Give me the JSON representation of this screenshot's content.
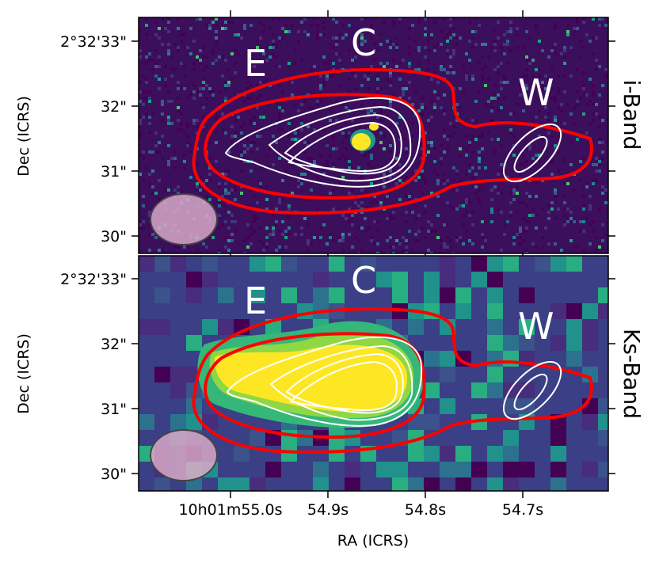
{
  "panels": [
    {
      "band_label": "i-Band",
      "region_labels": [
        "E",
        "C",
        "W"
      ],
      "y_ticks": [
        "2°32'33\"",
        "32\"",
        "31\"",
        "30\""
      ]
    },
    {
      "band_label": "Ks-Band",
      "region_labels": [
        "E",
        "C",
        "W"
      ],
      "y_ticks": [
        "2°32'33\"",
        "32\"",
        "31\"",
        "30\""
      ]
    }
  ],
  "x_ticks": [
    "10h01m55.0s",
    "54.9s",
    "54.8s",
    "54.7s"
  ],
  "x_axis_label": "RA (ICRS)",
  "y_axis_label": "Dec (ICRS)",
  "colors": {
    "background_colormap": "viridis",
    "outer_contour": "#ff0000",
    "inner_contour": "#ffffff",
    "beam": "#d8a8c8"
  }
}
